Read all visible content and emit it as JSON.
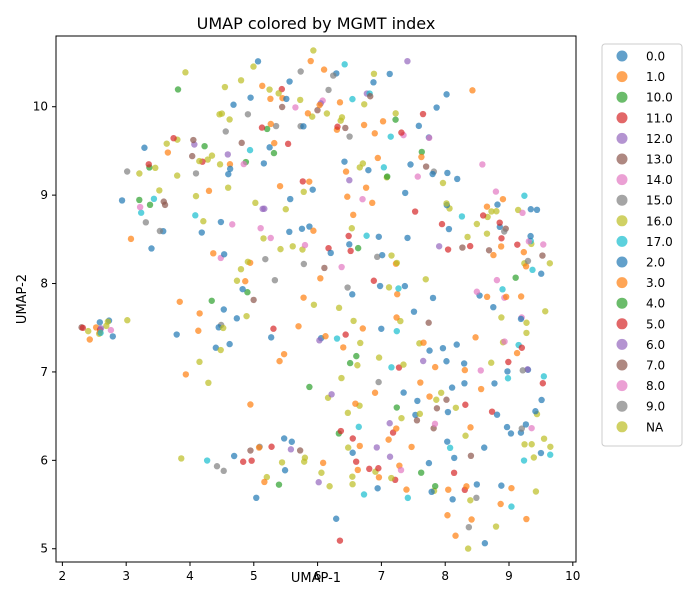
{
  "chart_data": {
    "type": "scatter",
    "title": "UMAP colored by MGMT index",
    "xlabel": "UMAP-1",
    "ylabel": "UMAP-2",
    "xlim": [
      1.9,
      10.05
    ],
    "ylim": [
      4.85,
      10.8
    ],
    "x_ticks": [
      2,
      3,
      4,
      5,
      6,
      7,
      8,
      9,
      10
    ],
    "y_ticks": [
      5,
      6,
      7,
      8,
      9,
      10
    ],
    "grid": false,
    "legend_position": "outside-right",
    "point_count": 520,
    "series": [
      {
        "name": "0.0",
        "color": "#1f77b4"
      },
      {
        "name": "1.0",
        "color": "#ff7f0e"
      },
      {
        "name": "10.0",
        "color": "#2ca02c"
      },
      {
        "name": "11.0",
        "color": "#d62728"
      },
      {
        "name": "12.0",
        "color": "#9467bd"
      },
      {
        "name": "13.0",
        "color": "#8c564b"
      },
      {
        "name": "14.0",
        "color": "#e377c2"
      },
      {
        "name": "15.0",
        "color": "#7f7f7f"
      },
      {
        "name": "16.0",
        "color": "#bcbd22"
      },
      {
        "name": "17.0",
        "color": "#17becf"
      },
      {
        "name": "2.0",
        "color": "#1f77b4"
      },
      {
        "name": "3.0",
        "color": "#ff7f0e"
      },
      {
        "name": "4.0",
        "color": "#2ca02c"
      },
      {
        "name": "5.0",
        "color": "#d62728"
      },
      {
        "name": "6.0",
        "color": "#9467bd"
      },
      {
        "name": "7.0",
        "color": "#8c564b"
      },
      {
        "name": "8.0",
        "color": "#e377c2"
      },
      {
        "name": "9.0",
        "color": "#7f7f7f"
      },
      {
        "name": "NA",
        "color": "#bcbd22"
      }
    ],
    "point_alpha": 0.7
  }
}
